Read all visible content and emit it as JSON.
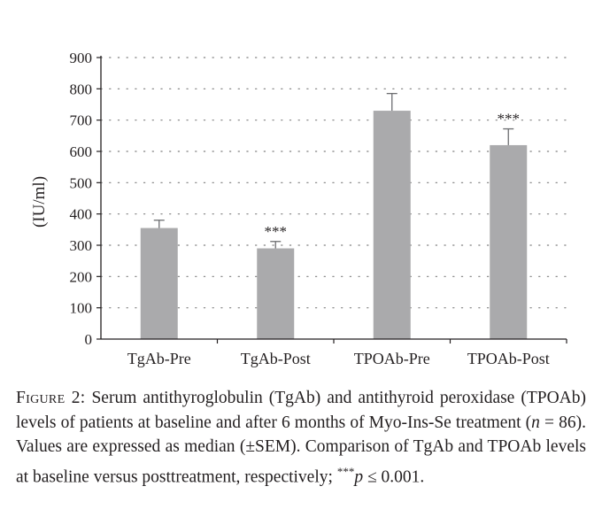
{
  "chart_data": {
    "type": "bar",
    "categories": [
      "TgAb-Pre",
      "TgAb-Post",
      "TPOAb-Pre",
      "TPOAb-Post"
    ],
    "values": [
      355,
      290,
      730,
      620
    ],
    "errors": [
      25,
      22,
      55,
      52
    ],
    "annotations": [
      "",
      "***",
      "",
      "***"
    ],
    "ylabel": "(IU/ml)",
    "ylim": [
      0,
      900
    ],
    "yticks": [
      0,
      100,
      200,
      300,
      400,
      500,
      600,
      700,
      800,
      900
    ],
    "grid": true,
    "bar_color": "#aaaaac",
    "grid_color": "#7f7f7f"
  },
  "caption": {
    "figure_label": "Figure 2:",
    "text_1": " Serum antithyroglobulin (TgAb) and antithyroid peroxidase (TPOAb) levels of patients at baseline and after 6 months of Myo-Ins-Se treatment (",
    "n_symbol": "n",
    "text_2": " = 86). Values are expressed as median (±SEM). Comparison of TgAb and TPOAb levels at baseline versus posttreatment, respectively; ",
    "stars": "***",
    "p_symbol": "p",
    "text_3": " ≤ 0.001."
  }
}
